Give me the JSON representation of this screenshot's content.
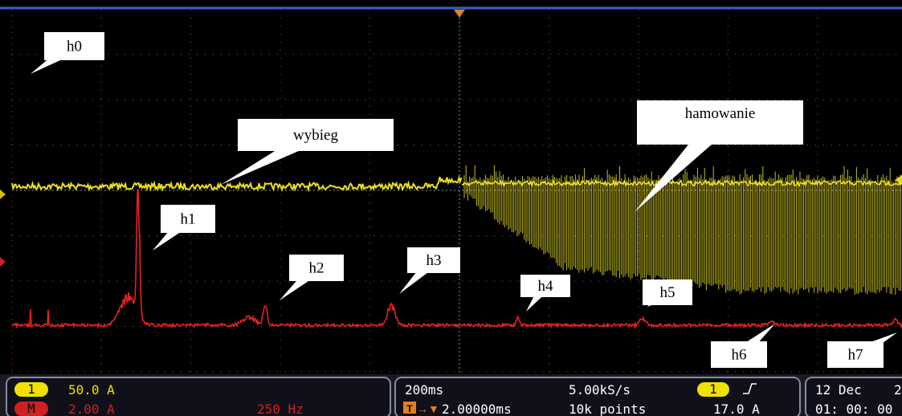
{
  "callouts": [
    {
      "label": "h0"
    },
    {
      "label": "wybieg"
    },
    {
      "label": "hamowanie"
    },
    {
      "label": "h1"
    },
    {
      "label": "h2"
    },
    {
      "label": "h3"
    },
    {
      "label": "h4"
    },
    {
      "label": "h5"
    },
    {
      "label": "h6"
    },
    {
      "label": "h7"
    }
  ],
  "status": {
    "channel1": {
      "number": "1",
      "scale": "50.0 A"
    },
    "math": {
      "label": "M",
      "scale": "2.00 A",
      "frequency": "250 Hz"
    },
    "timebase": {
      "time_per_div": "200ms",
      "sample_rate": "5.00kS/s",
      "delay": "2.00000ms",
      "record_length": "10k points"
    },
    "trigger": {
      "source": "1",
      "level": "17.0 A"
    },
    "clock": {
      "date": "12 Dec",
      "year_partial": "2",
      "time": "01: 00: 00"
    }
  }
}
